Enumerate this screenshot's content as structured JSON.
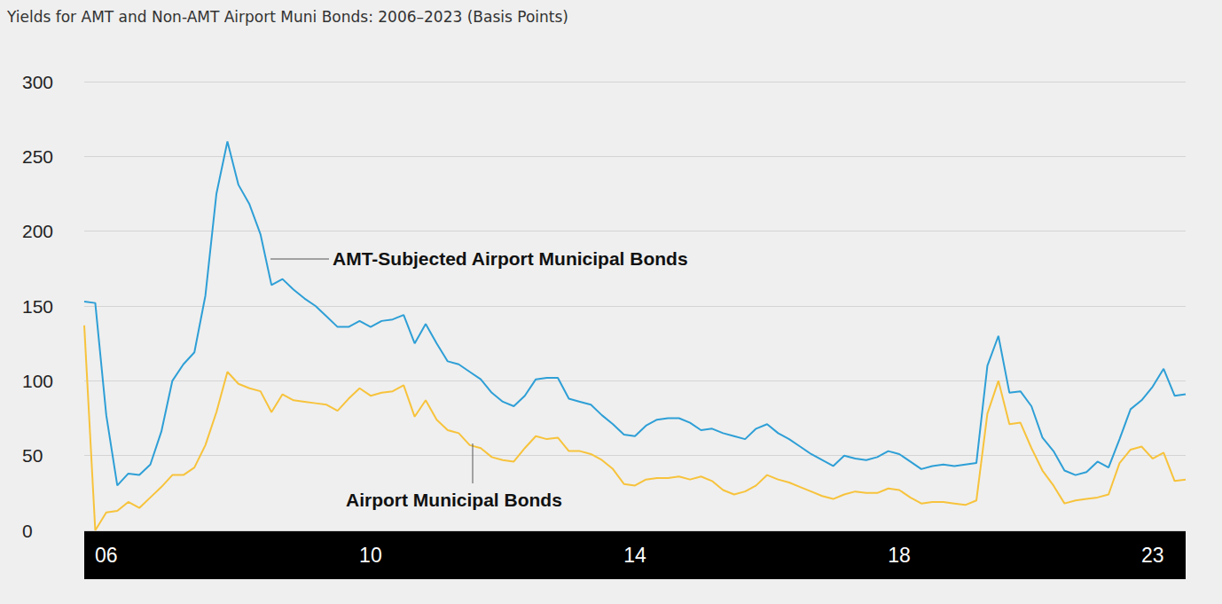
{
  "chart_data": {
    "type": "line",
    "title": "Yields for AMT and Non-AMT Airport Muni Bonds: 2006–2023 (Basis Points)",
    "categories": [
      null,
      null,
      "06",
      null,
      null,
      null,
      null,
      null,
      null,
      null,
      null,
      null,
      null,
      null,
      null,
      null,
      null,
      null,
      null,
      null,
      null,
      null,
      null,
      null,
      null,
      null,
      "10",
      null,
      null,
      null,
      null,
      null,
      null,
      null,
      null,
      null,
      null,
      null,
      null,
      null,
      null,
      null,
      null,
      null,
      null,
      null,
      null,
      null,
      null,
      null,
      "14",
      null,
      null,
      null,
      null,
      null,
      null,
      null,
      null,
      null,
      null,
      null,
      null,
      null,
      null,
      null,
      null,
      null,
      null,
      null,
      null,
      null,
      null,
      null,
      "18",
      null,
      null,
      null,
      null,
      null,
      null,
      null,
      null,
      null,
      null,
      null,
      null,
      null,
      null,
      null,
      null,
      null,
      null,
      null,
      null,
      null,
      null,
      "23",
      null,
      null,
      null
    ],
    "series": [
      {
        "name": "AMT-Subjected Airport Municipal Bonds",
        "color": "#2e9fd6",
        "values": [
          153,
          152,
          77,
          30,
          38,
          37,
          44,
          66,
          100,
          111,
          119,
          157,
          225,
          260,
          231,
          218,
          198,
          164,
          168,
          161,
          155,
          150,
          143,
          136,
          136,
          140,
          136,
          140,
          141,
          144,
          125,
          138,
          125,
          113,
          111,
          106,
          101,
          92,
          86,
          83,
          90,
          101,
          102,
          102,
          88,
          86,
          84,
          77,
          71,
          64,
          63,
          70,
          74,
          75,
          75,
          72,
          67,
          68,
          65,
          63,
          61,
          68,
          71,
          65,
          61,
          56,
          51,
          47,
          43,
          50,
          48,
          47,
          49,
          53,
          51,
          46,
          41,
          43,
          44,
          43,
          44,
          45,
          110,
          130,
          92,
          93,
          83,
          62,
          53,
          40,
          37,
          39,
          46,
          42,
          61,
          81,
          87,
          96,
          108,
          90,
          91
        ]
      },
      {
        "name": "Airport Municipal Bonds",
        "color": "#f7c33c",
        "values": [
          137,
          0,
          12,
          13,
          19,
          15,
          22,
          29,
          37,
          37,
          42,
          57,
          79,
          106,
          98,
          95,
          93,
          79,
          91,
          87,
          86,
          85,
          84,
          80,
          88,
          95,
          90,
          92,
          93,
          97,
          76,
          87,
          74,
          67,
          65,
          57,
          55,
          49,
          47,
          46,
          55,
          63,
          61,
          62,
          53,
          53,
          51,
          47,
          41,
          31,
          30,
          34,
          35,
          35,
          36,
          34,
          36,
          33,
          27,
          24,
          26,
          30,
          37,
          34,
          32,
          29,
          26,
          23,
          21,
          24,
          26,
          25,
          25,
          28,
          27,
          22,
          18,
          19,
          19,
          18,
          17,
          20,
          78,
          100,
          71,
          72,
          55,
          40,
          30,
          18,
          20,
          21,
          22,
          24,
          45,
          54,
          56,
          48,
          52,
          33,
          34
        ]
      }
    ],
    "ylim": [
      0,
      300
    ],
    "yticks": [
      0,
      50,
      100,
      150,
      200,
      250,
      300
    ],
    "grid": true
  }
}
